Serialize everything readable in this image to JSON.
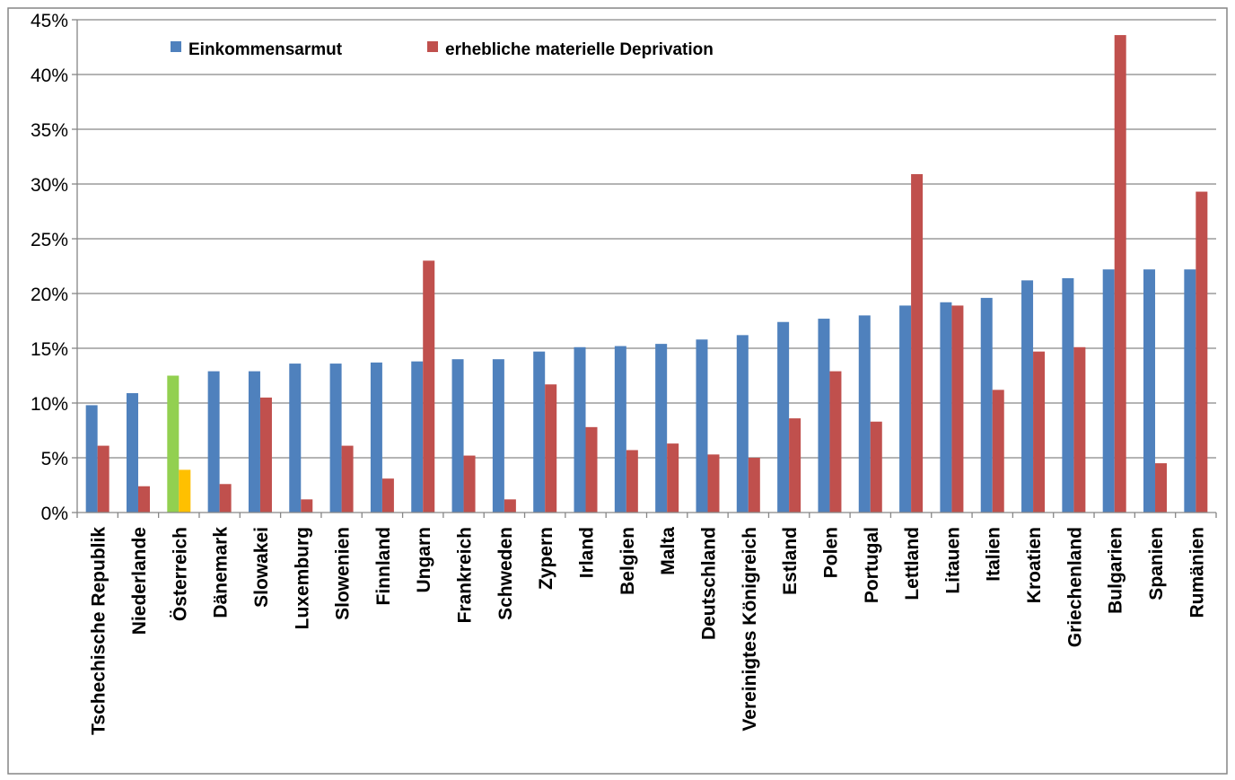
{
  "chart_data": {
    "type": "bar",
    "title": "",
    "xlabel": "",
    "ylabel": "",
    "ylim": [
      0,
      45
    ],
    "yticks": [
      "0%",
      "5%",
      "10%",
      "15%",
      "20%",
      "25%",
      "30%",
      "35%",
      "40%",
      "45%"
    ],
    "grid": true,
    "legend_position": "top-left",
    "categories": [
      "Tschechische Republik",
      "Niederlande",
      "Österreich",
      "Dänemark",
      "Slowakei",
      "Luxemburg",
      "Slowenien",
      "Finnland",
      "Ungarn",
      "Frankreich",
      "Schweden",
      "Zypern",
      "Irland",
      "Belgien",
      "Malta",
      "Deutschland",
      "Vereinigtes Königreich",
      "Estland",
      "Polen",
      "Portugal",
      "Lettland",
      "Litauen",
      "Italien",
      "Kroatien",
      "Griechenland",
      "Bulgarien",
      "Spanien",
      "Rumänien"
    ],
    "series": [
      {
        "name": "Einkommensarmut",
        "color": "#4F81BD",
        "values": [
          9.8,
          10.9,
          12.5,
          12.9,
          12.9,
          13.6,
          13.6,
          13.7,
          13.8,
          14.0,
          14.0,
          14.7,
          15.1,
          15.2,
          15.4,
          15.8,
          16.2,
          17.4,
          17.7,
          18.0,
          18.9,
          19.2,
          19.6,
          21.2,
          21.4,
          22.2,
          22.2,
          22.2
        ]
      },
      {
        "name": "erhebliche materielle Deprivation",
        "color": "#C0504D",
        "values": [
          6.1,
          2.4,
          3.9,
          2.6,
          10.5,
          1.2,
          6.1,
          3.1,
          23.0,
          5.2,
          1.2,
          11.7,
          7.8,
          5.7,
          6.3,
          5.3,
          5.0,
          8.6,
          12.9,
          8.3,
          30.9,
          18.9,
          11.2,
          14.7,
          15.1,
          43.6,
          4.5,
          29.3
        ]
      }
    ],
    "highlight": {
      "category": "Österreich",
      "colors": [
        "#92D050",
        "#FFC000"
      ]
    },
    "axis_color": "#868686",
    "grid_color": "#868686"
  }
}
